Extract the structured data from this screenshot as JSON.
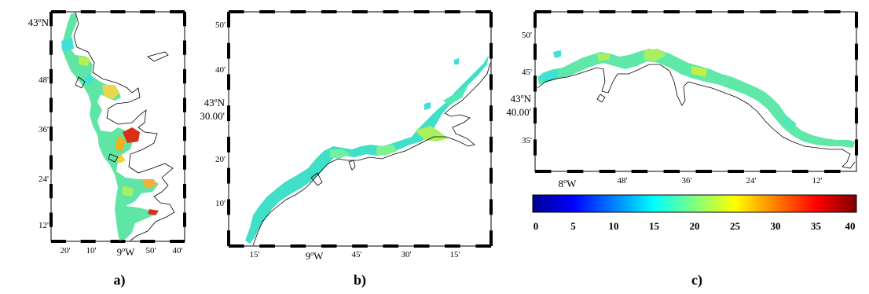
{
  "panels": {
    "a": {
      "label": "a)",
      "lat_main": "43",
      "lat_main_sup": "o",
      "lat_main_suffix": "N",
      "lat_ticks": [
        "48'",
        "36'",
        "24'",
        "12'"
      ],
      "lon_ticks": [
        "20'",
        "10'",
        "50'",
        "40'"
      ],
      "lon_main": "9",
      "lon_main_sup": "o",
      "lon_main_suffix": "W"
    },
    "b": {
      "label": "b)",
      "lat_ticks": [
        "50'",
        "40'",
        "20'",
        "10'"
      ],
      "lat_main_line1_num": "43",
      "lat_main_line1_sup": "o",
      "lat_main_line1_suffix": "N",
      "lat_main_line2": "30.00'",
      "lon_ticks": [
        "15'",
        "45'",
        "30'",
        "15'"
      ],
      "lon_main": "9",
      "lon_main_sup": "o",
      "lon_main_suffix": "W"
    },
    "c": {
      "label": "c)",
      "lat_ticks": [
        "50'",
        "45'",
        "35'"
      ],
      "lat_main_line1_num": "43",
      "lat_main_line1_sup": "o",
      "lat_main_line1_suffix": "N",
      "lat_main_line2": "40.00'",
      "lon_main": "8",
      "lon_main_sup": "o",
      "lon_main_suffix": "W",
      "lon_ticks": [
        "48'",
        "36'",
        "24'",
        "12'"
      ]
    }
  },
  "colorbar": {
    "ticks": [
      "0",
      "5",
      "10",
      "15",
      "20",
      "25",
      "30",
      "35",
      "40"
    ],
    "min": 0,
    "max": 40,
    "colormap": "jet",
    "colors": [
      "#00008f",
      "#0000ff",
      "#0080ff",
      "#00ffff",
      "#80ff80",
      "#ffff00",
      "#ff8000",
      "#ff0000",
      "#800000"
    ]
  }
}
